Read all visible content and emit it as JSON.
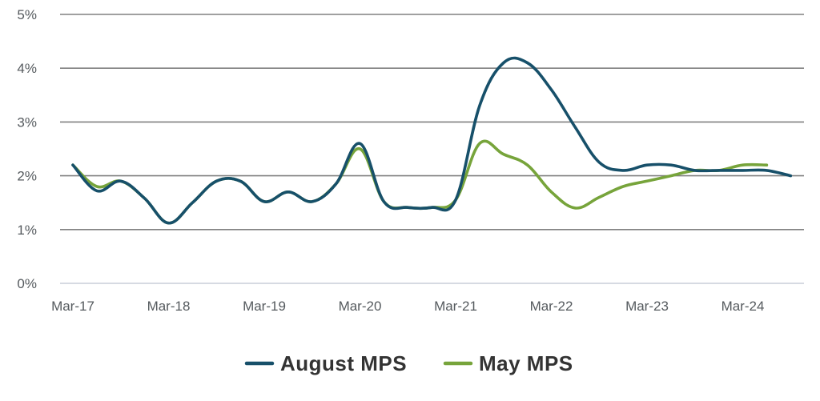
{
  "chart_data": {
    "type": "line",
    "title": "",
    "xlabel": "",
    "ylabel": "",
    "ylim": [
      0,
      5
    ],
    "y_ticks": [
      "0%",
      "1%",
      "2%",
      "3%",
      "4%",
      "5%"
    ],
    "x_ticks": [
      "Mar-17",
      "Mar-18",
      "Mar-19",
      "Mar-20",
      "Mar-21",
      "Mar-22",
      "Mar-23",
      "Mar-24"
    ],
    "x_tick_dates": [
      "2017-03",
      "2018-03",
      "2019-03",
      "2020-03",
      "2021-03",
      "2022-03",
      "2023-03",
      "2024-03"
    ],
    "grid": true,
    "legend_position": "bottom",
    "series": [
      {
        "name": "August MPS",
        "color": "#17506a",
        "points": [
          [
            "2017-03",
            2.2
          ],
          [
            "2017-06",
            1.72
          ],
          [
            "2017-09",
            1.9
          ],
          [
            "2017-12",
            1.58
          ],
          [
            "2018-03",
            1.12
          ],
          [
            "2018-06",
            1.5
          ],
          [
            "2018-09",
            1.9
          ],
          [
            "2018-12",
            1.9
          ],
          [
            "2019-03",
            1.52
          ],
          [
            "2019-06",
            1.7
          ],
          [
            "2019-09",
            1.52
          ],
          [
            "2019-12",
            1.85
          ],
          [
            "2020-03",
            2.6
          ],
          [
            "2020-06",
            1.52
          ],
          [
            "2020-09",
            1.41
          ],
          [
            "2020-12",
            1.41
          ],
          [
            "2021-03",
            1.55
          ],
          [
            "2021-06",
            3.3
          ],
          [
            "2021-09",
            4.1
          ],
          [
            "2021-12",
            4.1
          ],
          [
            "2022-03",
            3.6
          ],
          [
            "2022-06",
            2.9
          ],
          [
            "2022-09",
            2.25
          ],
          [
            "2022-12",
            2.1
          ],
          [
            "2023-03",
            2.2
          ],
          [
            "2023-06",
            2.2
          ],
          [
            "2023-09",
            2.1
          ],
          [
            "2023-12",
            2.1
          ],
          [
            "2024-03",
            2.1
          ],
          [
            "2024-06",
            2.1
          ],
          [
            "2024-09",
            2.0
          ]
        ]
      },
      {
        "name": "May MPS",
        "color": "#77a43b",
        "points": [
          [
            "2017-03",
            2.2
          ],
          [
            "2017-06",
            1.8
          ],
          [
            "2017-09",
            1.9
          ],
          [
            "2017-12",
            1.58
          ],
          [
            "2018-03",
            1.12
          ],
          [
            "2018-06",
            1.5
          ],
          [
            "2018-09",
            1.9
          ],
          [
            "2018-12",
            1.9
          ],
          [
            "2019-03",
            1.52
          ],
          [
            "2019-06",
            1.7
          ],
          [
            "2019-09",
            1.52
          ],
          [
            "2019-12",
            1.85
          ],
          [
            "2020-03",
            2.5
          ],
          [
            "2020-06",
            1.52
          ],
          [
            "2020-09",
            1.41
          ],
          [
            "2020-12",
            1.41
          ],
          [
            "2021-03",
            1.55
          ],
          [
            "2021-06",
            2.6
          ],
          [
            "2021-09",
            2.4
          ],
          [
            "2021-12",
            2.2
          ],
          [
            "2022-03",
            1.7
          ],
          [
            "2022-06",
            1.4
          ],
          [
            "2022-09",
            1.6
          ],
          [
            "2022-12",
            1.8
          ],
          [
            "2023-03",
            1.9
          ],
          [
            "2023-06",
            2.0
          ],
          [
            "2023-09",
            2.1
          ],
          [
            "2023-12",
            2.1
          ],
          [
            "2024-03",
            2.2
          ],
          [
            "2024-06",
            2.2
          ]
        ]
      }
    ]
  }
}
